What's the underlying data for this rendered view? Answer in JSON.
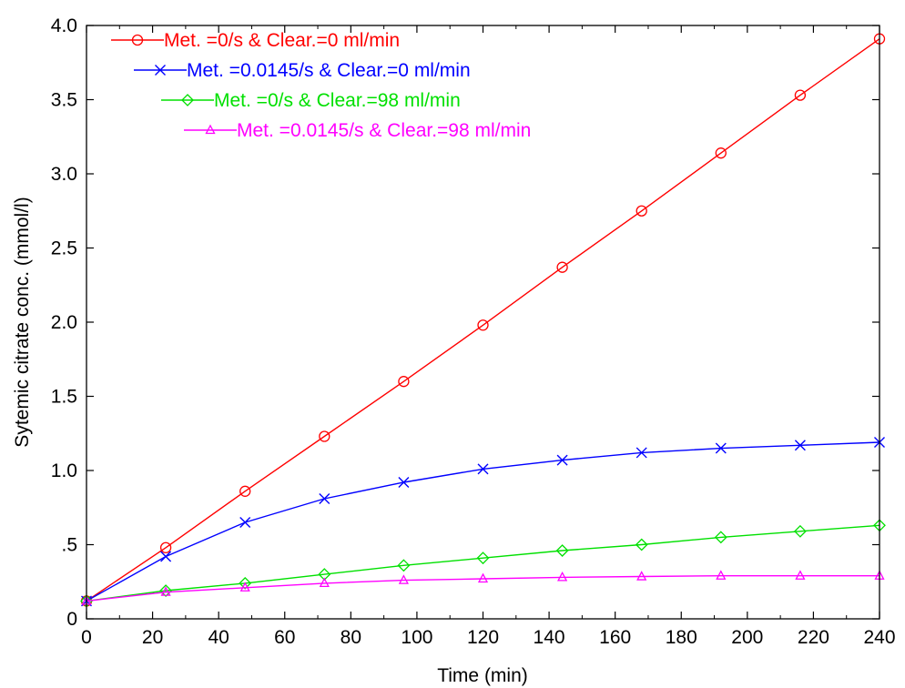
{
  "chart_data": {
    "type": "line",
    "title": "",
    "xlabel": "Time (min)",
    "ylabel": "Sytemic citrate conc. (mmol/l)",
    "xlim": [
      0,
      240
    ],
    "ylim": [
      0,
      4.0
    ],
    "x_ticks": [
      0,
      20,
      40,
      60,
      80,
      100,
      120,
      140,
      160,
      180,
      200,
      220,
      240
    ],
    "x_tick_labels": [
      "0",
      "20",
      "40",
      "60",
      "80",
      "100",
      "120",
      "140",
      "160",
      "180",
      "200",
      "220",
      "240"
    ],
    "y_ticks": [
      0,
      0.5,
      1.0,
      1.5,
      2.0,
      2.5,
      3.0,
      3.5,
      4.0
    ],
    "y_tick_labels": [
      "0",
      ".5",
      "1.0",
      "1.5",
      "2.0",
      "2.5",
      "3.0",
      "3.5",
      "4.0"
    ],
    "grid": false,
    "legend_placement": "top-left",
    "x": [
      0,
      24,
      48,
      72,
      96,
      120,
      144,
      168,
      192,
      216,
      240
    ],
    "series": [
      {
        "name": "Met. =0/s & Clear.=0 ml/min",
        "color": "#ff0000",
        "marker": "circle",
        "values": [
          0.12,
          0.48,
          0.86,
          1.23,
          1.6,
          1.98,
          2.37,
          2.75,
          3.14,
          3.53,
          3.91
        ]
      },
      {
        "name": "Met. =0.0145/s & Clear.=0 ml/min",
        "color": "#0000ff",
        "marker": "x",
        "values": [
          0.12,
          0.42,
          0.65,
          0.81,
          0.92,
          1.01,
          1.07,
          1.12,
          1.15,
          1.17,
          1.19
        ]
      },
      {
        "name": "Met. =0/s & Clear.=98 ml/min",
        "color": "#00e000",
        "marker": "diamond",
        "values": [
          0.12,
          0.19,
          0.24,
          0.3,
          0.36,
          0.41,
          0.46,
          0.5,
          0.55,
          0.59,
          0.63
        ]
      },
      {
        "name": "Met. =0.0145/s & Clear.=98 ml/min",
        "color": "#ff00ff",
        "marker": "triangle",
        "values": [
          0.12,
          0.18,
          0.21,
          0.24,
          0.26,
          0.27,
          0.28,
          0.285,
          0.29,
          0.29,
          0.29
        ]
      }
    ]
  }
}
